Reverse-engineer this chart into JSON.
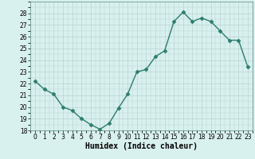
{
  "x": [
    0,
    1,
    2,
    3,
    4,
    5,
    6,
    7,
    8,
    9,
    10,
    11,
    12,
    13,
    14,
    15,
    16,
    17,
    18,
    19,
    20,
    21,
    22,
    23
  ],
  "y": [
    22.2,
    21.5,
    21.1,
    20.0,
    19.7,
    19.0,
    18.5,
    18.1,
    18.6,
    19.9,
    21.1,
    23.0,
    23.2,
    24.3,
    24.8,
    27.3,
    28.1,
    27.3,
    27.6,
    27.3,
    26.5,
    25.7,
    25.7,
    23.4
  ],
  "line_color": "#2d7d6e",
  "marker": "D",
  "markersize": 2.5,
  "linewidth": 1.0,
  "xlabel": "Humidex (Indice chaleur)",
  "ylim": [
    18,
    29
  ],
  "yticks": [
    18,
    19,
    20,
    21,
    22,
    23,
    24,
    25,
    26,
    27,
    28
  ],
  "xticks": [
    0,
    1,
    2,
    3,
    4,
    5,
    6,
    7,
    8,
    9,
    10,
    11,
    12,
    13,
    14,
    15,
    16,
    17,
    18,
    19,
    20,
    21,
    22,
    23
  ],
  "bg_color": "#d8f0ee",
  "grid_color": "#b8d4d0",
  "label_fontsize": 7,
  "tick_fontsize": 5.5
}
